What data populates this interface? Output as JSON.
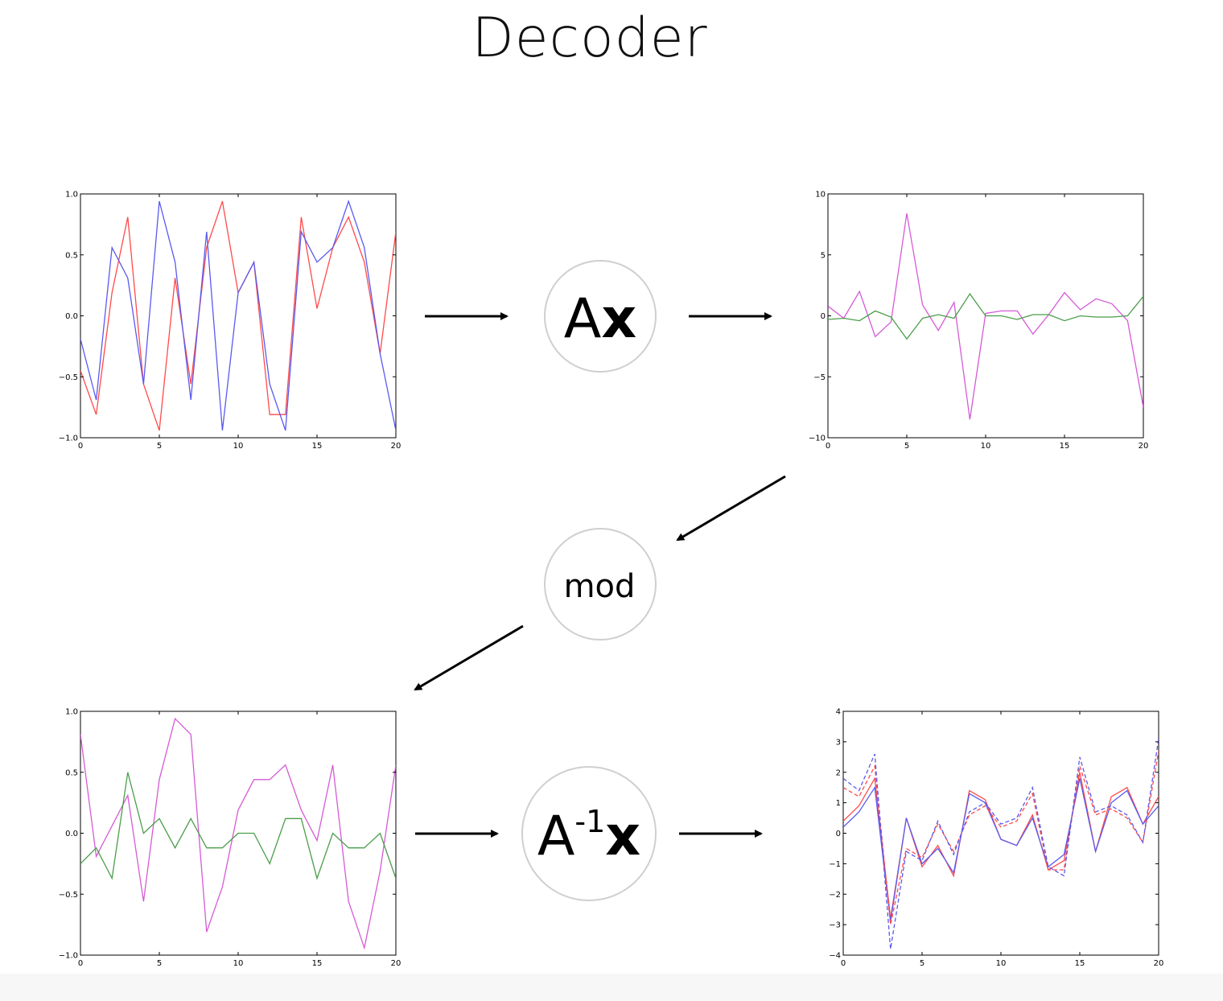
{
  "title": "Decoder",
  "nodes": {
    "ax": {
      "A": "A",
      "x": "x"
    },
    "mod": {
      "label": "mod"
    },
    "ainv": {
      "A": "A",
      "sup": "-1",
      "x": "x"
    }
  },
  "colors": {
    "red": "#ff4a4a",
    "blue": "#5a5af0",
    "magenta": "#d65ad6",
    "green": "#4a9e4a",
    "axis": "#000000",
    "node_border": "#cfcfcf",
    "arrow": "#000000"
  },
  "chart_data": [
    {
      "id": "top-left",
      "type": "line",
      "x": [
        0,
        1,
        2,
        3,
        4,
        5,
        6,
        7,
        8,
        9,
        10,
        11,
        12,
        13,
        14,
        15,
        16,
        17,
        18,
        19,
        20
      ],
      "xlim": [
        0,
        20
      ],
      "ylim": [
        -1.0,
        1.0
      ],
      "xticks": [
        0,
        5,
        10,
        15,
        20
      ],
      "xtick_labels": [
        "0",
        "5",
        "10",
        "15",
        "20"
      ],
      "yticks": [
        1.0,
        0.5,
        0.0,
        -0.5,
        -1.0
      ],
      "ytick_labels": [
        "1.0",
        "0.5",
        "0.0",
        "−0.5",
        "−1.0"
      ],
      "series": [
        {
          "color": "red",
          "values": [
            -0.45,
            -0.81,
            0.19,
            0.81,
            -0.56,
            -0.94,
            0.31,
            -0.56,
            0.56,
            0.94,
            0.19,
            0.44,
            -0.81,
            -0.81,
            0.81,
            0.06,
            0.56,
            0.81,
            0.44,
            -0.31,
            0.69
          ]
        },
        {
          "color": "blue",
          "values": [
            -0.19,
            -0.69,
            0.56,
            0.31,
            -0.56,
            0.94,
            0.44,
            -0.69,
            0.69,
            -0.94,
            0.19,
            0.44,
            -0.56,
            -0.94,
            0.69,
            0.44,
            0.56,
            0.94,
            0.56,
            -0.31,
            -0.94
          ]
        }
      ]
    },
    {
      "id": "top-right",
      "type": "line",
      "x": [
        0,
        1,
        2,
        3,
        4,
        5,
        6,
        7,
        8,
        9,
        10,
        11,
        12,
        13,
        14,
        15,
        16,
        17,
        18,
        19,
        20
      ],
      "xlim": [
        0,
        20
      ],
      "ylim": [
        -10,
        10
      ],
      "xticks": [
        0,
        5,
        10,
        15,
        20
      ],
      "xtick_labels": [
        "0",
        "5",
        "10",
        "15",
        "20"
      ],
      "yticks": [
        10,
        5,
        0,
        -5,
        -10
      ],
      "ytick_labels": [
        "10",
        "5",
        "0",
        "−5",
        "−10"
      ],
      "series": [
        {
          "color": "magenta",
          "values": [
            0.8,
            -0.2,
            2.0,
            -1.7,
            -0.5,
            8.4,
            0.9,
            -1.2,
            1.1,
            -8.5,
            0.2,
            0.4,
            0.4,
            -1.5,
            0.1,
            1.9,
            0.5,
            1.4,
            1.0,
            -0.4,
            -7.5
          ]
        },
        {
          "color": "green",
          "values": [
            -0.3,
            -0.2,
            -0.4,
            0.4,
            -0.1,
            -1.9,
            -0.2,
            0.1,
            -0.2,
            1.8,
            0.0,
            0.0,
            -0.3,
            0.1,
            0.1,
            -0.4,
            0.0,
            -0.1,
            -0.1,
            0.0,
            1.6
          ]
        }
      ]
    },
    {
      "id": "bottom-left",
      "type": "line",
      "x": [
        0,
        1,
        2,
        3,
        4,
        5,
        6,
        7,
        8,
        9,
        10,
        11,
        12,
        13,
        14,
        15,
        16,
        17,
        18,
        19,
        20
      ],
      "xlim": [
        0,
        20
      ],
      "ylim": [
        -1.0,
        1.0
      ],
      "xticks": [
        0,
        5,
        10,
        15,
        20
      ],
      "xtick_labels": [
        "0",
        "5",
        "10",
        "15",
        "20"
      ],
      "yticks": [
        1.0,
        0.5,
        0.0,
        -0.5,
        -1.0
      ],
      "ytick_labels": [
        "1.0",
        "0.5",
        "0.0",
        "−0.5",
        "−1.0"
      ],
      "series": [
        {
          "color": "magenta",
          "values": [
            0.81,
            -0.19,
            0.06,
            0.31,
            -0.56,
            0.44,
            0.94,
            0.81,
            -0.81,
            -0.44,
            0.19,
            0.44,
            0.44,
            0.56,
            0.19,
            -0.06,
            0.56,
            -0.56,
            -0.94,
            -0.31,
            0.56
          ]
        },
        {
          "color": "green",
          "values": [
            -0.25,
            -0.12,
            -0.37,
            0.5,
            0.0,
            0.12,
            -0.12,
            0.12,
            -0.12,
            -0.12,
            0.0,
            0.0,
            -0.25,
            0.12,
            0.12,
            -0.37,
            0.0,
            -0.12,
            -0.12,
            0.0,
            -0.37
          ]
        }
      ]
    },
    {
      "id": "bottom-right",
      "type": "line",
      "x": [
        0,
        1,
        2,
        3,
        4,
        5,
        6,
        7,
        8,
        9,
        10,
        11,
        12,
        13,
        14,
        15,
        16,
        17,
        18,
        19,
        20
      ],
      "xlim": [
        0,
        20
      ],
      "ylim": [
        -4,
        4
      ],
      "xticks": [
        0,
        5,
        10,
        15,
        20
      ],
      "xtick_labels": [
        "0",
        "5",
        "10",
        "15",
        "20"
      ],
      "yticks": [
        4,
        3,
        2,
        1,
        0,
        -1,
        -2,
        -3,
        -4
      ],
      "ytick_labels": [
        "4",
        "3",
        "2",
        "1",
        "0",
        "−1",
        "−2",
        "−3",
        "−4"
      ],
      "series": [
        {
          "color": "red",
          "dashed": false,
          "values": [
            0.4,
            0.9,
            1.8,
            -2.8,
            0.5,
            -1.1,
            -0.4,
            -1.4,
            1.4,
            1.1,
            -0.2,
            -0.4,
            0.6,
            -1.2,
            -0.9,
            2.0,
            -0.6,
            1.2,
            1.5,
            0.3,
            1.2
          ]
        },
        {
          "color": "blue",
          "dashed": false,
          "values": [
            0.2,
            0.7,
            1.5,
            -2.9,
            0.5,
            -1.0,
            -0.5,
            -1.3,
            1.3,
            1.0,
            -0.2,
            -0.4,
            0.5,
            -1.1,
            -0.7,
            1.8,
            -0.6,
            1.0,
            1.4,
            0.3,
            0.9
          ]
        },
        {
          "color": "red",
          "dashed": true,
          "values": [
            1.5,
            1.2,
            2.2,
            -3.0,
            -0.5,
            -0.8,
            0.3,
            -0.6,
            0.6,
            0.9,
            0.2,
            0.4,
            1.3,
            -1.2,
            -1.2,
            2.2,
            0.6,
            0.8,
            0.5,
            -0.3,
            2.7
          ]
        },
        {
          "color": "blue",
          "dashed": true,
          "values": [
            1.8,
            1.4,
            2.6,
            -3.8,
            -0.6,
            -0.9,
            0.4,
            -0.7,
            0.7,
            1.0,
            0.3,
            0.5,
            1.5,
            -1.1,
            -1.4,
            2.5,
            0.7,
            0.9,
            0.6,
            -0.3,
            3.1
          ]
        }
      ]
    }
  ]
}
